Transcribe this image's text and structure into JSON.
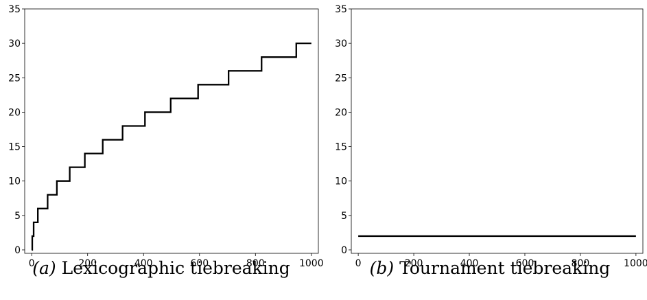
{
  "chart_data": [
    {
      "type": "line",
      "caption_letter": "(a)",
      "caption_text": " Lexicographic tiebreaking",
      "xlim": [
        -25,
        1025
      ],
      "ylim": [
        -0.5,
        35
      ],
      "xticks": [
        0,
        200,
        400,
        600,
        800,
        1000
      ],
      "yticks": [
        0,
        5,
        10,
        15,
        20,
        25,
        30,
        35
      ],
      "grid": false,
      "step": "post",
      "x": [
        0,
        2,
        7,
        14,
        22,
        34,
        57,
        90,
        136,
        190,
        254,
        325,
        405,
        497,
        595,
        704,
        822,
        946,
        1000
      ],
      "y": [
        0,
        2,
        4,
        4,
        6,
        6,
        8,
        10,
        12,
        14,
        16,
        18,
        20,
        22,
        24,
        26,
        28,
        30,
        30
      ]
    },
    {
      "type": "line",
      "caption_letter": "(b)",
      "caption_text": " Tournament tiebreaking",
      "xlim": [
        -25,
        1025
      ],
      "ylim": [
        -0.5,
        35
      ],
      "xticks": [
        0,
        200,
        400,
        600,
        800,
        1000
      ],
      "yticks": [
        0,
        5,
        10,
        15,
        20,
        25,
        30,
        35
      ],
      "grid": false,
      "step": "post",
      "x": [
        0,
        1000
      ],
      "y": [
        2,
        2
      ]
    }
  ]
}
